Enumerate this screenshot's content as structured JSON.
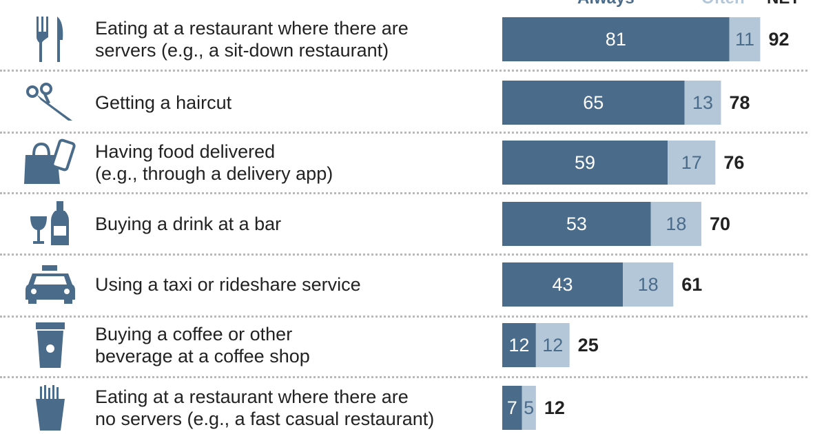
{
  "legend": {
    "always": "Always",
    "often": "Often",
    "net": "NET"
  },
  "colors": {
    "always": "#4a6b8a",
    "often": "#b3c7d8",
    "always_text": "#ffffff",
    "often_text": "#4a6b8a",
    "net_text": "#222222",
    "icon": "#4a6b8a"
  },
  "rows": [
    {
      "label_lines": [
        "Eating at a restaurant where there are",
        "servers (e.g., a sit-down restaurant)"
      ],
      "icon": "fork-knife-icon",
      "always": "81",
      "often": "11",
      "net": "92"
    },
    {
      "label_lines": [
        "Getting a haircut"
      ],
      "icon": "scissors-icon",
      "always": "65",
      "often": "13",
      "net": "78"
    },
    {
      "label_lines": [
        "Having food delivered",
        "(e.g., through a delivery app)"
      ],
      "icon": "shopping-bag-phone-icon",
      "always": "59",
      "often": "17",
      "net": "76"
    },
    {
      "label_lines": [
        "Buying a drink at a bar"
      ],
      "icon": "wine-bottle-icon",
      "always": "53",
      "often": "18",
      "net": "70"
    },
    {
      "label_lines": [
        "Using a taxi or rideshare service"
      ],
      "icon": "taxi-icon",
      "always": "43",
      "often": "18",
      "net": "61"
    },
    {
      "label_lines": [
        "Buying a coffee or other",
        "beverage at a coffee shop"
      ],
      "icon": "coffee-cup-icon",
      "always": "12",
      "often": "12",
      "net": "25"
    },
    {
      "label_lines": [
        "Eating at a restaurant where there are",
        "no servers (e.g., a fast casual restaurant)"
      ],
      "icon": "fries-icon",
      "always": "7",
      "often": "5",
      "net": "12"
    }
  ],
  "chart_data": {
    "type": "bar",
    "orientation": "horizontal",
    "stacked": true,
    "categories": [
      "Eating at a restaurant where there are servers (e.g., a sit-down restaurant)",
      "Getting a haircut",
      "Having food delivered (e.g., through a delivery app)",
      "Buying a drink at a bar",
      "Using a taxi or rideshare service",
      "Buying a coffee or other beverage at a coffee shop",
      "Eating at a restaurant where there are no servers (e.g., a fast casual restaurant)"
    ],
    "series": [
      {
        "name": "Always",
        "values": [
          81,
          65,
          59,
          53,
          43,
          12,
          7
        ]
      },
      {
        "name": "Often",
        "values": [
          11,
          13,
          17,
          18,
          18,
          12,
          5
        ]
      }
    ],
    "net": [
      92,
      78,
      76,
      70,
      61,
      25,
      12
    ],
    "legend": "top",
    "grid": false
  }
}
